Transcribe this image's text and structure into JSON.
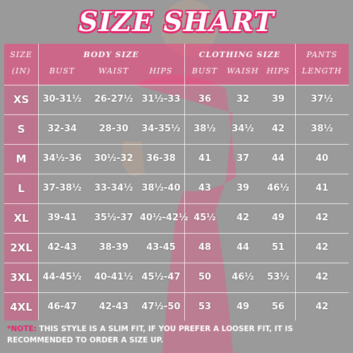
{
  "title": "SIZE SHART",
  "colors": {
    "accent": "#e8246e",
    "header_band": "#ec4880",
    "background": "#9a9a9a",
    "text": "#ffffff"
  },
  "header": {
    "size_label_line1": "SIZE",
    "size_label_line2": "(IN)",
    "body_size": "BODY SIZE",
    "clothing_size": "CLOTHING SIZE",
    "pants_length_line1": "PANTS",
    "pants_length_line2": "LENGTH",
    "body_cols": [
      "BUST",
      "WAIST",
      "HIPS"
    ],
    "clothing_cols": [
      "BUST",
      "WAISH",
      "HIPS"
    ]
  },
  "rows": [
    {
      "size": "XS",
      "cells": [
        "30-31½",
        "26-27½",
        "31½-33",
        "36",
        "32",
        "39",
        "37½"
      ]
    },
    {
      "size": "S",
      "cells": [
        "32-34",
        "28-30",
        "34-35½",
        "38½",
        "34½",
        "42",
        "38½"
      ]
    },
    {
      "size": "M",
      "cells": [
        "34½-36",
        "30½-32",
        "36-38",
        "41",
        "37",
        "44",
        "40"
      ]
    },
    {
      "size": "L",
      "cells": [
        "37-38½",
        "33-34½",
        "38½-40",
        "43",
        "39",
        "46½",
        "41"
      ]
    },
    {
      "size": "XL",
      "cells": [
        "39-41",
        "35½-37",
        "40½-42½",
        "45½",
        "42",
        "49",
        "42"
      ]
    },
    {
      "size": "2XL",
      "cells": [
        "42-43",
        "38-39",
        "43-45",
        "48",
        "44",
        "51",
        "42"
      ]
    },
    {
      "size": "3XL",
      "cells": [
        "44-45½",
        "40-41½",
        "45½-47",
        "50",
        "46½",
        "53½",
        "42"
      ]
    },
    {
      "size": "4XL",
      "cells": [
        "46-47",
        "42-43",
        "47½-50",
        "53",
        "49",
        "56",
        "42"
      ]
    }
  ],
  "note": {
    "label": "*NOTE:",
    "text": " THIS STYLE IS A SLIM FIT, IF YOU PREFER A LOOSER FIT, IT IS RECOMMENDED TO ORDER A SIZE UP."
  }
}
